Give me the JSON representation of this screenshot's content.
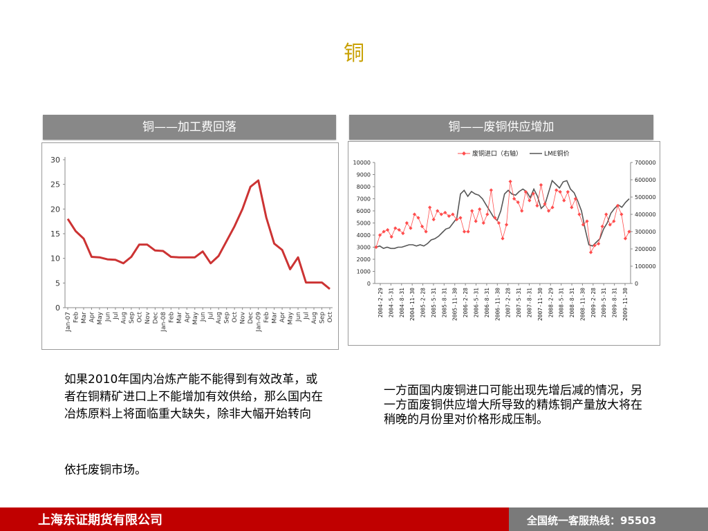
{
  "slide": {
    "title": "铜",
    "left_header": "铜——加工费回落",
    "right_header": "铜——废铜供应增加",
    "left_paragraph": " 如果2010年国内冶炼产能不能得到有效改革，或者在铜精矿进口上不能增加有效供给，那么国内在冶炼原料上将面临重大缺失，除非大幅开始转向",
    "left_paragraph_tail": "依托废铜市场。",
    "right_paragraph": " 一方面国内废铜进口可能出现先增后减的情况，另一方面废铜供应增大所导致的精炼铜产量放大将在稍晚的月份里对价格形成压制。",
    "footer_company": "上海东证期货有限公司",
    "footer_hotline": "全国统一客服热线：95503"
  },
  "colors": {
    "title": "#c8a000",
    "header_bg": "#888888",
    "footer_red": "#c00000",
    "footer_gray": "#7a7a7a",
    "left_line": "#cc3333",
    "scrap_series": "#ff4d4d",
    "lme_series": "#555555"
  },
  "chart_data": [
    {
      "type": "line",
      "title": "",
      "xlabel": "",
      "ylabel": "",
      "ylim": [
        0,
        30
      ],
      "yticks": [
        0,
        5,
        10,
        15,
        20,
        25,
        30
      ],
      "categories": [
        "Jan-07",
        "Feb",
        "Mar",
        "Apr",
        "May",
        "Jun",
        "Jul",
        "Aug",
        "Sep",
        "Oct",
        "Nov",
        "Dec",
        "Jan-08",
        "Feb",
        "Mar",
        "Apr",
        "May",
        "Jun",
        "Jul",
        "Aug",
        "Sep",
        "Oct",
        "Nov",
        "Dec",
        "Jan-09",
        "Feb",
        "Mar",
        "Apr",
        "May",
        "Jun",
        "Jul",
        "Aug",
        "Sep",
        "Oct"
      ],
      "values": [
        18,
        15.5,
        14,
        10.3,
        10.2,
        9.8,
        9.7,
        9,
        10.3,
        12.8,
        12.8,
        11.6,
        11.5,
        10.3,
        10.2,
        10.2,
        10.2,
        11.4,
        9.0,
        10.5,
        13.5,
        16.5,
        20,
        24.5,
        25.8,
        18.3,
        13,
        11.7,
        7.8,
        10.2,
        5.1,
        5.1,
        5.1,
        3.8
      ],
      "grid": false,
      "legend": "none"
    },
    {
      "type": "line",
      "title": "",
      "legend": "top-center",
      "series": [
        {
          "name": "废铜进口（右轴）",
          "axis": "right",
          "marker": "diamond",
          "values": [
            210000,
            280000,
            300000,
            310000,
            270000,
            320000,
            310000,
            290000,
            350000,
            320000,
            400000,
            380000,
            330000,
            300000,
            440000,
            370000,
            420000,
            400000,
            410000,
            390000,
            400000,
            370000,
            380000,
            300000,
            300000,
            420000,
            360000,
            430000,
            350000,
            400000,
            540000,
            380000,
            350000,
            260000,
            340000,
            590000,
            490000,
            470000,
            420000,
            530000,
            480000,
            520000,
            450000,
            570000,
            460000,
            420000,
            440000,
            540000,
            530000,
            480000,
            530000,
            440000,
            490000,
            400000,
            340000,
            360000,
            180000,
            220000,
            230000,
            330000,
            400000,
            340000,
            360000,
            450000,
            400000,
            260000,
            300000
          ],
          "ylim": [
            0,
            700000
          ],
          "yticks": [
            0,
            100000,
            200000,
            300000,
            400000,
            500000,
            600000,
            700000
          ]
        },
        {
          "name": "LME铜价",
          "axis": "left",
          "marker": "none",
          "values": [
            3000,
            3100,
            2900,
            3000,
            2900,
            2900,
            3000,
            3000,
            3100,
            3200,
            3200,
            3100,
            3200,
            3100,
            3300,
            3600,
            3700,
            3900,
            4200,
            4500,
            4600,
            5000,
            5400,
            7400,
            7700,
            7200,
            7600,
            7400,
            7300,
            7000,
            6500,
            6000,
            5500,
            5200,
            6000,
            7400,
            7700,
            7400,
            7300,
            7600,
            7800,
            7600,
            7100,
            7800,
            7200,
            6200,
            6500,
            7500,
            8500,
            8200,
            7900,
            8400,
            8500,
            7800,
            7500,
            6800,
            6000,
            4500,
            3200,
            3100,
            3400,
            3700,
            4500,
            5000,
            5800,
            6200,
            6500,
            6300,
            6700,
            7000
          ],
          "ylim": [
            0,
            10000
          ],
          "yticks": [
            0,
            1000,
            2000,
            3000,
            4000,
            5000,
            6000,
            7000,
            8000,
            9000,
            10000
          ]
        }
      ],
      "x_tick_labels": [
        "2004-2-29",
        "2004-5-31",
        "2004-8-31",
        "2004-11-30",
        "2005-2-28",
        "2005-5-31",
        "2005-8-31",
        "2005-11-30",
        "2006-2-28",
        "2006-5-31",
        "2006-8-31",
        "2006-11-30",
        "2007-2-28",
        "2007-5-31",
        "2007-8-31",
        "2007-11-30",
        "2008-2-29",
        "2008-5-31",
        "2008-8-31",
        "2008-11-30",
        "2009-2-28",
        "2009-5-31",
        "2009-8-31",
        "2009-11-30"
      ],
      "grid": false
    }
  ]
}
